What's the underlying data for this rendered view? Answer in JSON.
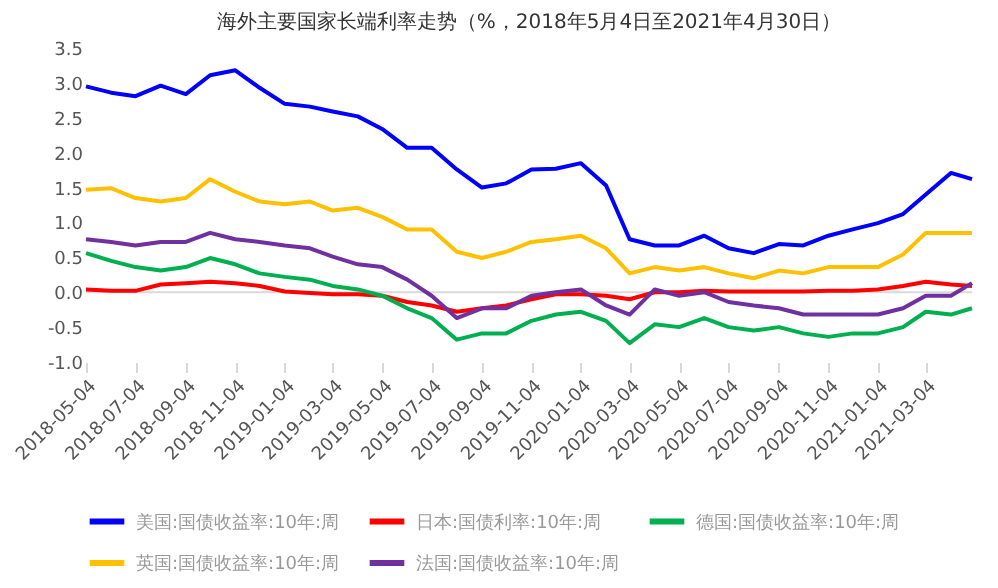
{
  "chart_data": {
    "type": "line",
    "title": "海外主要国家长端利率走势（%，2018年5月4日至2021年4月30日）",
    "x": [
      "2018-05-04",
      "2018-06-04",
      "2018-07-04",
      "2018-08-04",
      "2018-09-04",
      "2018-10-04",
      "2018-11-04",
      "2018-12-04",
      "2019-01-04",
      "2019-02-04",
      "2019-03-04",
      "2019-04-04",
      "2019-05-04",
      "2019-06-04",
      "2019-07-04",
      "2019-08-04",
      "2019-09-04",
      "2019-10-04",
      "2019-11-04",
      "2019-12-04",
      "2020-01-04",
      "2020-02-04",
      "2020-03-04",
      "2020-04-04",
      "2020-05-04",
      "2020-06-04",
      "2020-07-04",
      "2020-08-04",
      "2020-09-04",
      "2020-10-04",
      "2020-11-04",
      "2020-12-04",
      "2021-01-04",
      "2021-02-04",
      "2021-03-04",
      "2021-04-04",
      "2021-04-30"
    ],
    "series": [
      {
        "name": "美国:国债收益率:10年:周",
        "color": "#0000ff",
        "values": [
          2.95,
          2.86,
          2.81,
          2.96,
          2.84,
          3.11,
          3.18,
          2.93,
          2.7,
          2.66,
          2.59,
          2.52,
          2.34,
          2.07,
          2.07,
          1.76,
          1.5,
          1.56,
          1.76,
          1.77,
          1.85,
          1.53,
          0.76,
          0.67,
          0.67,
          0.81,
          0.63,
          0.56,
          0.69,
          0.67,
          0.81,
          0.9,
          0.99,
          1.12,
          1.4,
          1.71,
          1.62
        ]
      },
      {
        "name": "日本:国债利率:10年:周",
        "color": "#ff0000",
        "values": [
          0.04,
          0.02,
          0.02,
          0.11,
          0.13,
          0.15,
          0.13,
          0.09,
          0.01,
          -0.01,
          -0.03,
          -0.03,
          -0.05,
          -0.14,
          -0.19,
          -0.28,
          -0.23,
          -0.19,
          -0.1,
          -0.03,
          -0.03,
          -0.05,
          -0.1,
          0.0,
          0.0,
          0.02,
          0.01,
          0.01,
          0.01,
          0.01,
          0.02,
          0.02,
          0.04,
          0.09,
          0.15,
          0.11,
          0.09
        ]
      },
      {
        "name": "德国:国债收益率:10年:周",
        "color": "#00b050",
        "values": [
          0.56,
          0.45,
          0.36,
          0.31,
          0.36,
          0.49,
          0.4,
          0.27,
          0.22,
          0.18,
          0.09,
          0.04,
          -0.05,
          -0.23,
          -0.37,
          -0.68,
          -0.59,
          -0.59,
          -0.41,
          -0.32,
          -0.28,
          -0.41,
          -0.73,
          -0.46,
          -0.5,
          -0.37,
          -0.5,
          -0.55,
          -0.5,
          -0.59,
          -0.64,
          -0.59,
          -0.59,
          -0.5,
          -0.28,
          -0.32,
          -0.23
        ]
      },
      {
        "name": "英国:国债收益率:10年:周",
        "color": "#ffc000",
        "values": [
          1.47,
          1.49,
          1.35,
          1.3,
          1.35,
          1.62,
          1.44,
          1.3,
          1.26,
          1.3,
          1.17,
          1.21,
          1.08,
          0.9,
          0.9,
          0.58,
          0.49,
          0.58,
          0.72,
          0.76,
          0.81,
          0.63,
          0.27,
          0.36,
          0.31,
          0.36,
          0.27,
          0.2,
          0.31,
          0.27,
          0.36,
          0.36,
          0.36,
          0.54,
          0.85,
          0.85,
          0.85
        ]
      },
      {
        "name": "法国:国债收益率:10年:周",
        "color": "#7030a0",
        "values": [
          0.76,
          0.72,
          0.67,
          0.72,
          0.72,
          0.85,
          0.76,
          0.72,
          0.67,
          0.63,
          0.51,
          0.4,
          0.36,
          0.18,
          -0.05,
          -0.37,
          -0.23,
          -0.23,
          -0.05,
          0.0,
          0.04,
          -0.19,
          -0.32,
          0.04,
          -0.05,
          0.0,
          -0.14,
          -0.19,
          -0.23,
          -0.32,
          -0.32,
          -0.32,
          -0.32,
          -0.23,
          -0.05,
          -0.05,
          0.13
        ]
      }
    ],
    "xlim": [
      "2018-05-04",
      "2021-04-30"
    ],
    "xticks": [
      "2018-05-04",
      "2018-07-04",
      "2018-09-04",
      "2018-11-04",
      "2019-01-04",
      "2019-03-04",
      "2019-05-04",
      "2019-07-04",
      "2019-09-04",
      "2019-11-04",
      "2020-01-04",
      "2020-03-04",
      "2020-05-04",
      "2020-07-04",
      "2020-09-04",
      "2020-11-04",
      "2021-01-04",
      "2021-03-04"
    ],
    "ylim": [
      -1.0,
      3.5
    ],
    "yticks": [
      {
        "value": -1.0,
        "label": "-1.0"
      },
      {
        "value": -0.5,
        "label": "-0.5"
      },
      {
        "value": 0,
        "label": "0.0"
      },
      {
        "value": 0.5,
        "label": "0.5"
      },
      {
        "value": 1.0,
        "label": "1.0"
      },
      {
        "value": 1.5,
        "label": "1.5"
      },
      {
        "value": 2.0,
        "label": "2.0"
      },
      {
        "value": 2.5,
        "label": "2.5"
      },
      {
        "value": 3.0,
        "label": "3.0"
      },
      {
        "value": 3.5,
        "label": "3.5"
      }
    ],
    "ref_lines": [
      {
        "axis": "y",
        "value": 0,
        "color": "#d9d9d9"
      }
    ],
    "legend": "bottom",
    "grid": false,
    "marker": "none",
    "line_style": "solid"
  }
}
